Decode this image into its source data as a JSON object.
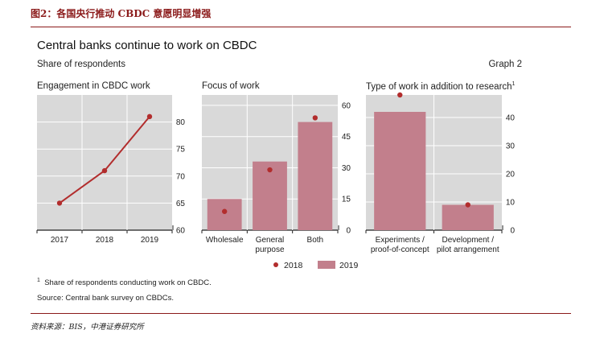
{
  "header": {
    "figure_title": "图2：各国央行推动 CBDC 意愿明显增强",
    "main_title": "Central banks continue to work on CBDC",
    "subtitle": "Share of respondents",
    "graph_label": "Graph 2"
  },
  "colors": {
    "accent": "#8b1a1a",
    "panel_bg": "#d9d9d9",
    "bar": "#c27f8c",
    "dot": "#b22d2d",
    "line": "#b22d2d"
  },
  "legend": {
    "dot_label": "2018",
    "bar_label": "2019"
  },
  "footnotes": {
    "note": "Share of respondents conducting work on CBDC.",
    "note_marker": "1",
    "source": "Source: Central bank survey on CBDCs.",
    "cn_source": "资料来源：BIS，中港证券研究所"
  },
  "chart_data": [
    {
      "type": "line",
      "title": "Engagement in CBDC work",
      "x": [
        "2017",
        "2018",
        "2019"
      ],
      "series": [
        {
          "values": [
            65,
            71,
            81
          ]
        }
      ],
      "ylim": [
        60,
        85
      ],
      "yticks": [
        60,
        65,
        70,
        75,
        80
      ],
      "grid": true
    },
    {
      "type": "bar",
      "title": "Focus of work",
      "categories": [
        "Wholesale",
        "General purpose",
        "Both"
      ],
      "category_lines": [
        [
          "Wholesale"
        ],
        [
          "General",
          "purpose"
        ],
        [
          "Both"
        ]
      ],
      "series": [
        {
          "name": "2018",
          "kind": "dot",
          "values": [
            9,
            29,
            54
          ]
        },
        {
          "name": "2019",
          "kind": "bar",
          "values": [
            15,
            33,
            52
          ]
        }
      ],
      "ylim": [
        0,
        65
      ],
      "yticks": [
        0,
        15,
        30,
        45,
        60
      ],
      "grid": true
    },
    {
      "type": "bar",
      "title": "Type of work in addition to research",
      "title_note": "1",
      "categories": [
        "Experiments / proof-of-concept",
        "Development / pilot arrangement"
      ],
      "category_lines": [
        [
          "Experiments /",
          "proof-of-concept"
        ],
        [
          "Development /",
          "pilot arrangement"
        ]
      ],
      "series": [
        {
          "name": "2018",
          "kind": "dot",
          "values": [
            48,
            9
          ]
        },
        {
          "name": "2019",
          "kind": "bar",
          "values": [
            42,
            9
          ]
        }
      ],
      "ylim": [
        0,
        48
      ],
      "yticks": [
        0,
        10,
        20,
        30,
        40
      ],
      "grid": true
    }
  ]
}
